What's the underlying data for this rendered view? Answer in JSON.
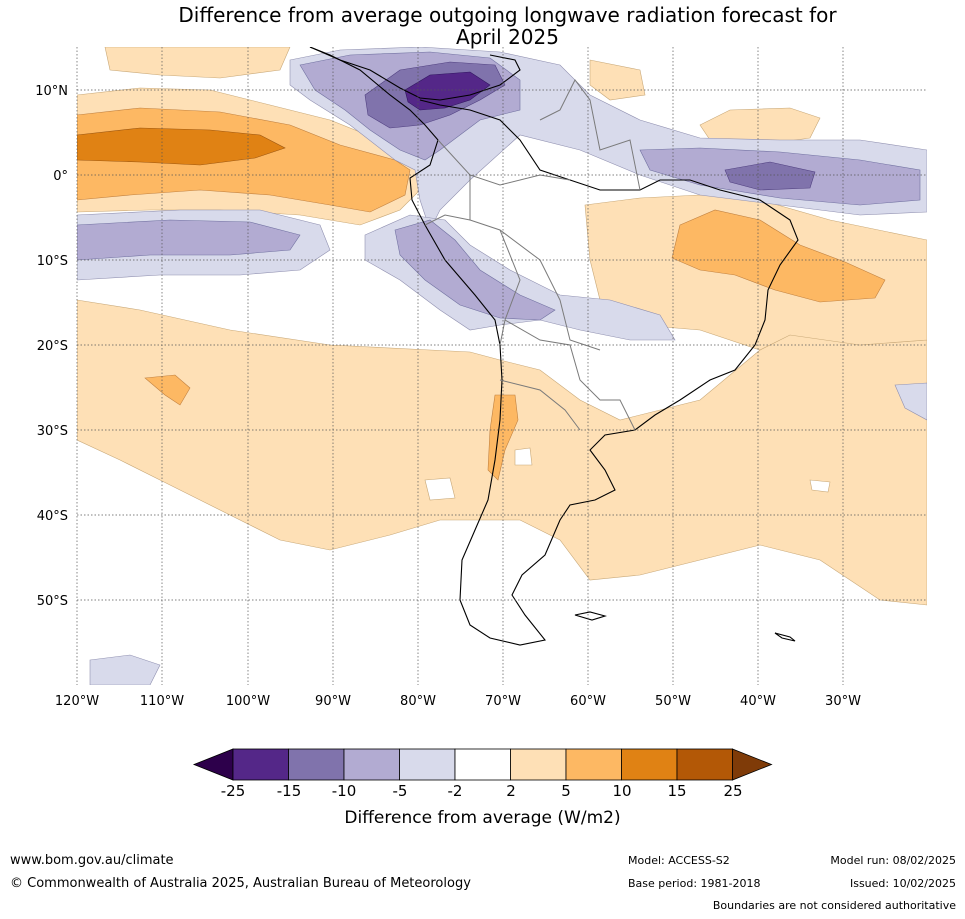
{
  "title_line1": "Difference from average outgoing longwave radiation forecast for",
  "title_line2": "April 2025",
  "lat_labels": [
    "10°N",
    "0°",
    "10°S",
    "20°S",
    "30°S",
    "40°S",
    "50°S"
  ],
  "lon_labels": [
    "120°W",
    "110°W",
    "100°W",
    "90°W",
    "80°W",
    "70°W",
    "60°W",
    "50°W",
    "40°W",
    "30°W"
  ],
  "colorbar": {
    "ticks": [
      "-25",
      "-15",
      "-10",
      "-5",
      "-2",
      "2",
      "5",
      "10",
      "15",
      "25"
    ],
    "colors": [
      "#2d004b",
      "#542788",
      "#8073ac",
      "#b2abd2",
      "#d8daeb",
      "#ffffff",
      "#fee0b6",
      "#fdb863",
      "#e08214",
      "#b35806",
      "#7f3b08"
    ],
    "label": "Difference from average (W/m2)"
  },
  "footer": {
    "url": "www.bom.gov.au/climate",
    "copyright": "© Commonwealth of Australia 2025, Australian Bureau of Meteorology",
    "model": "Model: ACCESS-S2",
    "base_period": "Base period: 1981-2018",
    "model_run": "Model run: 08/02/2025",
    "issued": "Issued: 10/02/2025",
    "disclaimer": "Boundaries are not considered authoritative"
  }
}
